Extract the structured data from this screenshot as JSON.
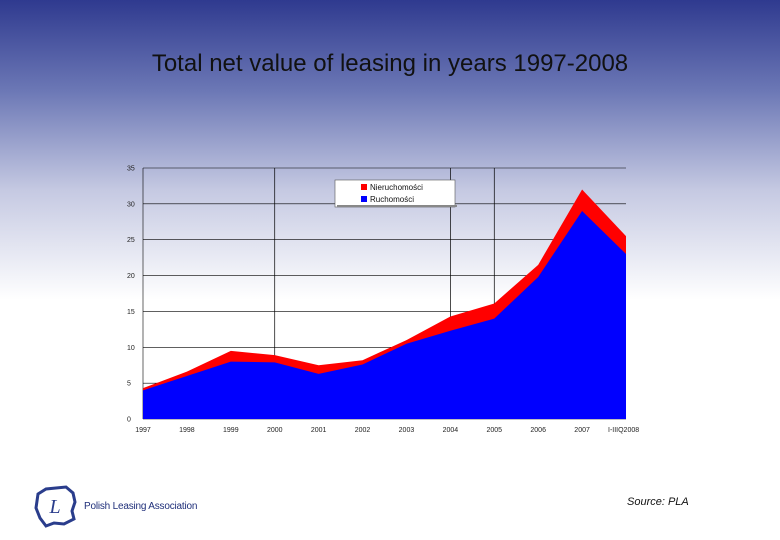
{
  "slide": {
    "title": "Total net value of leasing in years 1997-2008",
    "source": "Source: PLA"
  },
  "logo": {
    "text": "Polish Leasing Association",
    "letter": "L",
    "icon": "poland-map-icon",
    "color": "#2a3d8c"
  },
  "colors": {
    "movables": "#0000ff",
    "real_estate": "#ff0000"
  },
  "chart_data": {
    "type": "area",
    "title": "Total net value of leasing in years 1997-2008",
    "categories": [
      "1997",
      "1998",
      "1999",
      "2000",
      "2001",
      "2002",
      "2003",
      "2004",
      "2005",
      "2006",
      "2007",
      "I-IIIQ2008"
    ],
    "series": [
      {
        "name": "Ruchomości",
        "values": [
          4.0,
          6.0,
          8.0,
          7.9,
          6.3,
          7.6,
          10.5,
          12.3,
          14.0,
          19.8,
          29.0,
          23.0
        ]
      },
      {
        "name": "Nieruchomości",
        "values": [
          0.3,
          0.6,
          1.5,
          1.0,
          1.2,
          0.6,
          0.5,
          2.0,
          2.1,
          1.7,
          3.0,
          2.5
        ]
      }
    ],
    "stacked": true,
    "xlabel": "",
    "ylabel": "",
    "ylim": [
      0,
      35
    ],
    "yticks": [
      "0",
      "5",
      "10",
      "15",
      "20",
      "25",
      "30",
      "35"
    ],
    "grid": "horizontal",
    "legend": "top-center"
  }
}
